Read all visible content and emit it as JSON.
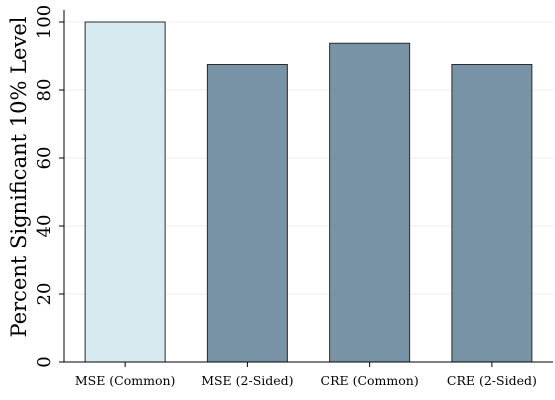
{
  "chart_data": {
    "type": "bar",
    "title": "",
    "xlabel": "",
    "ylabel": "Percent Significant 10% Level",
    "categories": [
      "MSE (Common)",
      "MSE (2-Sided)",
      "CRE (Common)",
      "CRE (2-Sided)"
    ],
    "values": [
      100,
      87.5,
      93.75,
      87.5
    ],
    "ylim": [
      0,
      100
    ],
    "yticks": [
      0,
      20,
      40,
      60,
      80,
      100
    ],
    "grid": true,
    "legend": "none",
    "colors": {
      "highlight_bar": "#d6eaf0",
      "bar": "#7893a6",
      "bar_stroke": "#2b2b2b",
      "grid": "#eeeeee",
      "axis": "#000000"
    },
    "bar_colors": [
      "#d6eaf0",
      "#7893a6",
      "#7893a6",
      "#7893a6"
    ]
  }
}
